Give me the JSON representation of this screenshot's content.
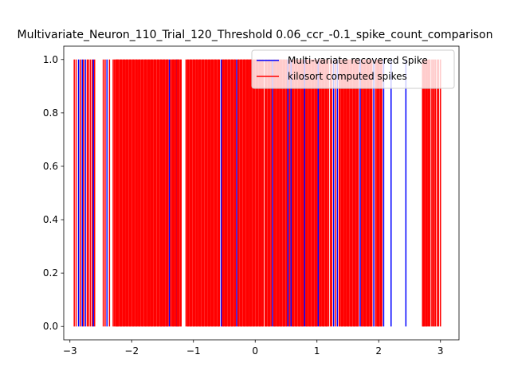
{
  "chart_data": {
    "type": "line",
    "title": "Multivariate_Neuron_110_Trial_120_Threshold 0.06_ccr_-0.1_spike_count_comparison",
    "xlabel": "",
    "ylabel": "",
    "xlim": [
      -3.1,
      3.3
    ],
    "ylim": [
      -0.05,
      1.05
    ],
    "grid": false,
    "legend_position": "top-right",
    "x_ticks": [
      {
        "value": -3,
        "label": "−3"
      },
      {
        "value": -2,
        "label": "−2"
      },
      {
        "value": -1,
        "label": "−1"
      },
      {
        "value": 0,
        "label": "0"
      },
      {
        "value": 1,
        "label": "1"
      },
      {
        "value": 2,
        "label": "2"
      },
      {
        "value": 3,
        "label": "3"
      }
    ],
    "y_ticks": [
      {
        "value": 0.0,
        "label": "0.0"
      },
      {
        "value": 0.2,
        "label": "0.2"
      },
      {
        "value": 0.4,
        "label": "0.4"
      },
      {
        "value": 0.6,
        "label": "0.6"
      },
      {
        "value": 0.8,
        "label": "0.8"
      },
      {
        "value": 1.0,
        "label": "1.0"
      }
    ],
    "series": [
      {
        "name": "Multi-variate recovered Spike",
        "color": "#0000ff",
        "style": "vertical-event-lines",
        "y_range": [
          0,
          1
        ],
        "x": [
          -2.86,
          -2.8,
          -2.75,
          -2.62,
          -2.4,
          -1.39,
          -1.27,
          -0.55,
          -0.3,
          0.28,
          0.53,
          0.58,
          0.8,
          1.02,
          1.27,
          1.33,
          1.7,
          1.92,
          2.08,
          2.2,
          2.44
        ]
      },
      {
        "name": "kilosort computed spikes",
        "color": "#ff0000",
        "style": "vertical-event-lines",
        "y_range": [
          0,
          1
        ],
        "x": [
          -2.93,
          -2.9,
          -2.83,
          -2.78,
          -2.72,
          -2.7,
          -2.67,
          -2.64,
          -2.6,
          -2.46,
          -2.43,
          -2.36,
          -2.3,
          -2.28,
          -2.26,
          -2.25,
          -2.24,
          -2.23,
          -2.22,
          -2.21,
          -2.19,
          -2.18,
          -2.17,
          -2.16,
          -2.14,
          -2.13,
          -2.12,
          -2.11,
          -2.09,
          -2.08,
          -2.07,
          -2.06,
          -2.04,
          -2.03,
          -2.02,
          -2.01,
          -1.99,
          -1.98,
          -1.97,
          -1.96,
          -1.94,
          -1.93,
          -1.92,
          -1.91,
          -1.89,
          -1.88,
          -1.87,
          -1.86,
          -1.84,
          -1.83,
          -1.82,
          -1.81,
          -1.79,
          -1.78,
          -1.77,
          -1.76,
          -1.74,
          -1.73,
          -1.72,
          -1.71,
          -1.69,
          -1.68,
          -1.67,
          -1.66,
          -1.64,
          -1.63,
          -1.62,
          -1.61,
          -1.59,
          -1.58,
          -1.57,
          -1.56,
          -1.54,
          -1.53,
          -1.52,
          -1.51,
          -1.49,
          -1.48,
          -1.47,
          -1.46,
          -1.44,
          -1.43,
          -1.42,
          -1.41,
          -1.37,
          -1.36,
          -1.34,
          -1.33,
          -1.32,
          -1.31,
          -1.29,
          -1.28,
          -1.26,
          -1.25,
          -1.24,
          -1.23,
          -1.21,
          -1.2,
          -1.12,
          -1.1,
          -1.09,
          -1.08,
          -1.06,
          -1.05,
          -1.04,
          -1.03,
          -1.01,
          -1.0,
          -0.99,
          -0.98,
          -0.96,
          -0.95,
          -0.94,
          -0.93,
          -0.91,
          -0.9,
          -0.89,
          -0.88,
          -0.86,
          -0.85,
          -0.84,
          -0.83,
          -0.81,
          -0.8,
          -0.79,
          -0.78,
          -0.76,
          -0.75,
          -0.74,
          -0.73,
          -0.71,
          -0.7,
          -0.69,
          -0.68,
          -0.66,
          -0.65,
          -0.64,
          -0.63,
          -0.61,
          -0.6,
          -0.59,
          -0.58,
          -0.53,
          -0.52,
          -0.51,
          -0.49,
          -0.48,
          -0.47,
          -0.46,
          -0.44,
          -0.43,
          -0.42,
          -0.41,
          -0.39,
          -0.38,
          -0.37,
          -0.36,
          -0.34,
          -0.33,
          -0.32,
          -0.28,
          -0.27,
          -0.26,
          -0.24,
          -0.23,
          -0.22,
          -0.21,
          -0.19,
          -0.18,
          -0.17,
          -0.16,
          -0.14,
          -0.13,
          -0.12,
          -0.11,
          -0.09,
          -0.08,
          -0.07,
          -0.06,
          -0.04,
          -0.03,
          -0.02,
          -0.01,
          0.01,
          0.02,
          0.03,
          0.04,
          0.06,
          0.07,
          0.08,
          0.09,
          0.11,
          0.12,
          0.13,
          0.16,
          0.17,
          0.18,
          0.19,
          0.21,
          0.22,
          0.23,
          0.24,
          0.26,
          0.3,
          0.31,
          0.32,
          0.33,
          0.35,
          0.36,
          0.37,
          0.38,
          0.4,
          0.41,
          0.42,
          0.43,
          0.45,
          0.46,
          0.47,
          0.48,
          0.5,
          0.51,
          0.55,
          0.56,
          0.6,
          0.61,
          0.62,
          0.63,
          0.65,
          0.66,
          0.67,
          0.68,
          0.7,
          0.71,
          0.72,
          0.73,
          0.75,
          0.76,
          0.77,
          0.78,
          0.82,
          0.83,
          0.84,
          0.85,
          0.87,
          0.88,
          0.89,
          0.9,
          0.92,
          0.93,
          0.94,
          0.95,
          0.97,
          0.98,
          0.99,
          1.0,
          1.04,
          1.05,
          1.06,
          1.07,
          1.09,
          1.1,
          1.11,
          1.12,
          1.14,
          1.15,
          1.16,
          1.17,
          1.19,
          1.22,
          1.24,
          1.3,
          1.36,
          1.37,
          1.39,
          1.4,
          1.41,
          1.42,
          1.44,
          1.45,
          1.46,
          1.47,
          1.49,
          1.5,
          1.51,
          1.52,
          1.54,
          1.55,
          1.56,
          1.57,
          1.59,
          1.6,
          1.61,
          1.62,
          1.64,
          1.65,
          1.66,
          1.67,
          1.72,
          1.73,
          1.74,
          1.76,
          1.77,
          1.78,
          1.79,
          1.81,
          1.82,
          1.83,
          1.84,
          1.86,
          1.87,
          1.88,
          1.89,
          1.95,
          1.96,
          1.98,
          1.99,
          2.0,
          2.01,
          2.03,
          2.04,
          2.05,
          2.71,
          2.72,
          2.73,
          2.74,
          2.76,
          2.77,
          2.78,
          2.8,
          2.82,
          2.83,
          2.86,
          2.88,
          2.9,
          2.92,
          2.95,
          2.97,
          3.0
        ]
      }
    ]
  }
}
